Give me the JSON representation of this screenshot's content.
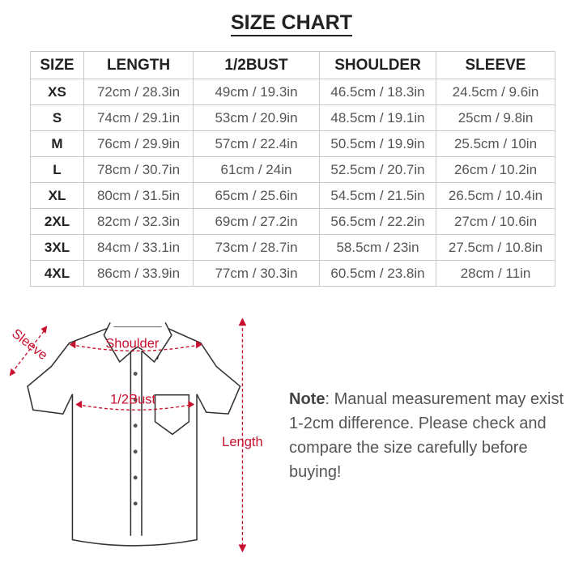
{
  "title": "SIZE CHART",
  "table": {
    "headers": [
      "SIZE",
      "LENGTH",
      "1/2BUST",
      "SHOULDER",
      "SLEEVE"
    ],
    "rows": [
      [
        "XS",
        "72cm / 28.3in",
        "49cm / 19.3in",
        "46.5cm / 18.3in",
        "24.5cm / 9.6in"
      ],
      [
        "S",
        "74cm / 29.1in",
        "53cm / 20.9in",
        "48.5cm / 19.1in",
        "25cm / 9.8in"
      ],
      [
        "M",
        "76cm / 29.9in",
        "57cm / 22.4in",
        "50.5cm / 19.9in",
        "25.5cm / 10in"
      ],
      [
        "L",
        "78cm / 30.7in",
        "61cm / 24in",
        "52.5cm / 20.7in",
        "26cm / 10.2in"
      ],
      [
        "XL",
        "80cm / 31.5in",
        "65cm / 25.6in",
        "54.5cm / 21.5in",
        "26.5cm / 10.4in"
      ],
      [
        "2XL",
        "82cm / 32.3in",
        "69cm / 27.2in",
        "56.5cm / 22.2in",
        "27cm / 10.6in"
      ],
      [
        "3XL",
        "84cm / 33.1in",
        "73cm / 28.7in",
        "58.5cm / 23in",
        "27.5cm / 10.8in"
      ],
      [
        "4XL",
        "86cm / 33.9in",
        "77cm / 30.3in",
        "60.5cm / 23.8in",
        "28cm / 11in"
      ]
    ]
  },
  "diagram": {
    "labels": {
      "sleeve": "Sleeve",
      "shoulder": "Shoulder",
      "bust": "1/2Bust",
      "length": "Length"
    },
    "accent_color": "#c8102e"
  },
  "note": {
    "label": "Note",
    "text": ": Manual measurement may exist 1-2cm difference. Please check and compare the size carefully before buying!"
  }
}
